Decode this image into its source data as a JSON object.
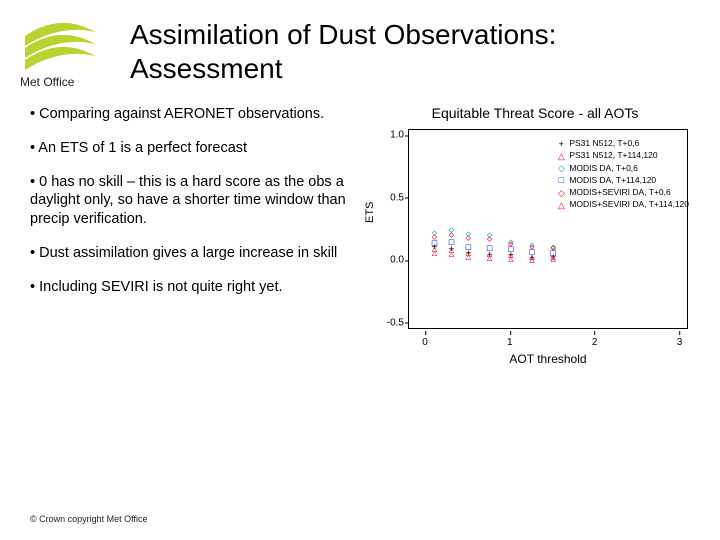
{
  "logo_text": "Met Office",
  "title": "Assimilation of Dust Observations: Assessment",
  "bullets": [
    "•  Comparing against AERONET observations.",
    "• An ETS of 1 is a perfect forecast",
    "• 0 has no skill – this is a hard score as the obs a daylight only, so have a shorter time window than precip verification.",
    "•  Dust assimilation gives a large increase in skill",
    "• Including SEVIRI is not quite right yet."
  ],
  "footer": "© Crown copyright   Met Office",
  "chart": {
    "type": "scatter",
    "title": "Equitable Threat Score - all AOTs",
    "xlabel": "AOT threshold",
    "ylabel": "ETS",
    "xlim": [
      -0.2,
      3.1
    ],
    "ylim": [
      -0.55,
      1.05
    ],
    "xticks": [
      0,
      1,
      2,
      3
    ],
    "yticks": [
      -0.5,
      0.0,
      0.5,
      1.0
    ],
    "xtick_labels": [
      "0",
      "1",
      "2",
      "3"
    ],
    "ytick_labels": [
      "-0.5",
      "0.0",
      "0.5",
      "1.0"
    ],
    "background_color": "#ffffff",
    "border_color": "#000000",
    "label_fontsize": 11,
    "tick_fontsize": 10,
    "title_fontsize": 14,
    "marker_size": 9,
    "series": [
      {
        "name": "PS31 N512, T+0,6",
        "marker": "+",
        "color": "#000000",
        "x": [
          0.1,
          0.3,
          0.5,
          0.75,
          1.0,
          1.25,
          1.5
        ],
        "y": [
          0.11,
          0.09,
          0.06,
          0.04,
          0.04,
          0.02,
          0.03
        ]
      },
      {
        "name": "PS31 N512, T+114,120",
        "marker": "△",
        "color": "#d5006d",
        "x": [
          0.1,
          0.3,
          0.5,
          0.75,
          1.0,
          1.25,
          1.5
        ],
        "y": [
          0.06,
          0.05,
          0.03,
          0.02,
          0.01,
          0.0,
          0.01
        ]
      },
      {
        "name": "MODIS DA, T+0,6",
        "marker": "◇",
        "color": "#00a2a2",
        "x": [
          0.1,
          0.3,
          0.5,
          0.75,
          1.0,
          1.25,
          1.5
        ],
        "y": [
          0.22,
          0.24,
          0.21,
          0.2,
          0.15,
          0.12,
          0.11
        ]
      },
      {
        "name": "MODIS DA, T+114,120",
        "marker": "□",
        "color": "#0030ff",
        "x": [
          0.1,
          0.3,
          0.5,
          0.75,
          1.0,
          1.25,
          1.5
        ],
        "y": [
          0.14,
          0.15,
          0.11,
          0.1,
          0.09,
          0.07,
          0.06
        ]
      },
      {
        "name": "MODIS+SEVIRI DA, T+0,6",
        "marker": "◇",
        "color": "#ff0000",
        "x": [
          0.1,
          0.3,
          0.5,
          0.75,
          1.0,
          1.25,
          1.5
        ],
        "y": [
          0.19,
          0.2,
          0.18,
          0.17,
          0.13,
          0.11,
          0.1
        ]
      },
      {
        "name": "MODIS+SEVIRI DA, T+114,120",
        "marker": "△",
        "color": "#ff0000",
        "x": [
          0.1,
          0.3,
          0.5,
          0.75,
          1.0,
          1.25,
          1.5
        ],
        "y": [
          0.09,
          0.08,
          0.06,
          0.05,
          0.04,
          0.03,
          0.03
        ]
      }
    ],
    "legend_position": "top-right",
    "logo_colors": {
      "swoosh": "#b7d433",
      "underline": "#b7d433"
    }
  }
}
